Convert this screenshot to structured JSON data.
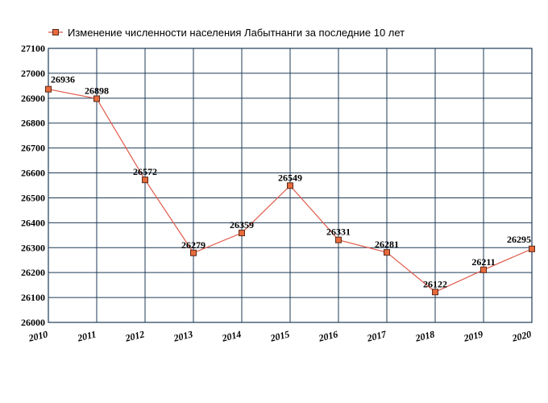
{
  "chart_data": {
    "type": "line",
    "title": "",
    "xlabel": "",
    "ylabel": "",
    "x": [
      "2010",
      "2011",
      "2012",
      "2013",
      "2014",
      "2015",
      "2016",
      "2017",
      "2018",
      "2019",
      "2020"
    ],
    "series": [
      {
        "name": "Изменение численности населения Лабытнанги за последние 10 лет",
        "values": [
          26936,
          26898,
          26572,
          26279,
          26359,
          26549,
          26331,
          26281,
          26122,
          26211,
          26295
        ]
      }
    ],
    "yticks": [
      "26000",
      "26100",
      "26200",
      "26300",
      "26400",
      "26500",
      "26600",
      "26700",
      "26800",
      "26900",
      "27000",
      "27100"
    ],
    "ylim": [
      26000,
      27100
    ],
    "grid": true,
    "legend_position": "top-left",
    "colors": {
      "line": "#e05a4a",
      "marker_fill": "#e86a3c",
      "marker_stroke": "#5a2a1a",
      "grid": "#1f3b57",
      "frame": "#1f3b57"
    }
  }
}
